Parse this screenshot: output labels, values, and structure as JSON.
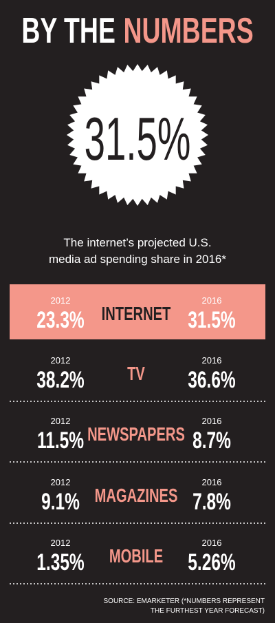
{
  "header": {
    "title_part1": "BY THE",
    "title_part2": "NUMBERS"
  },
  "hero": {
    "value": "31.5%",
    "caption_line1": "The internet’s projected U.S.",
    "caption_line2": "media ad spending share in 2016*"
  },
  "rows": [
    {
      "label": "INTERNET",
      "year1": "2012",
      "value1": "23.3%",
      "year2": "2016",
      "value2": "31.5%"
    },
    {
      "label": "TV",
      "year1": "2012",
      "value1": "38.2%",
      "year2": "2016",
      "value2": "36.6%"
    },
    {
      "label": "NEWSPAPERS",
      "year1": "2012",
      "value1": "11.5%",
      "year2": "2016",
      "value2": "8.7%"
    },
    {
      "label": "MAGAZINES",
      "year1": "2012",
      "value1": "9.1%",
      "year2": "2016",
      "value2": "7.8%"
    },
    {
      "label": "MOBILE",
      "year1": "2012",
      "value1": "1.35%",
      "year2": "2016",
      "value2": "5.26%"
    }
  ],
  "source": {
    "line1": "SOURCE: EMARKETER (*NUMBERS REPRESENT",
    "line2": "THE FURTHEST YEAR FORECAST)"
  }
}
